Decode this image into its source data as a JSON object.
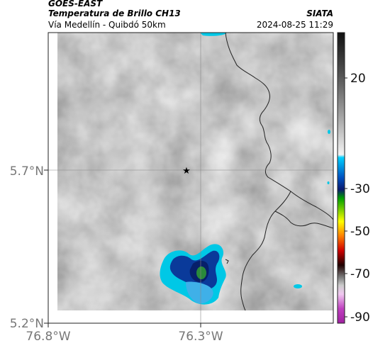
{
  "header": {
    "satellite": "GOES-EAST",
    "product": "Temperatura de Brillo CH13",
    "region": "Vía Medellín - Quibdó 50km",
    "brand": "SIATA",
    "datetime": "2024-08-25 11:29"
  },
  "axes": {
    "y_ticks": [
      {
        "label": "5.7°N",
        "value": 5.7
      },
      {
        "label": "5.2°N",
        "value": 5.2
      }
    ],
    "x_ticks": [
      {
        "label": "76.8°W",
        "value": -76.8
      },
      {
        "label": "76.3°W",
        "value": -76.3
      }
    ]
  },
  "colorbar": {
    "ticks": [
      {
        "label": "20",
        "value": 20
      },
      {
        "label": "-30",
        "value": -30
      },
      {
        "label": "-50",
        "value": -50
      },
      {
        "label": "-70",
        "value": -70
      },
      {
        "label": "-90",
        "value": -90
      }
    ]
  },
  "marker": {
    "icon": "star-icon"
  },
  "colors": {
    "cold_cyan": "#00c8e6",
    "cold_blue": "#0a3a9a",
    "cold_green": "#2a8a3a",
    "boundary": "#222222"
  }
}
